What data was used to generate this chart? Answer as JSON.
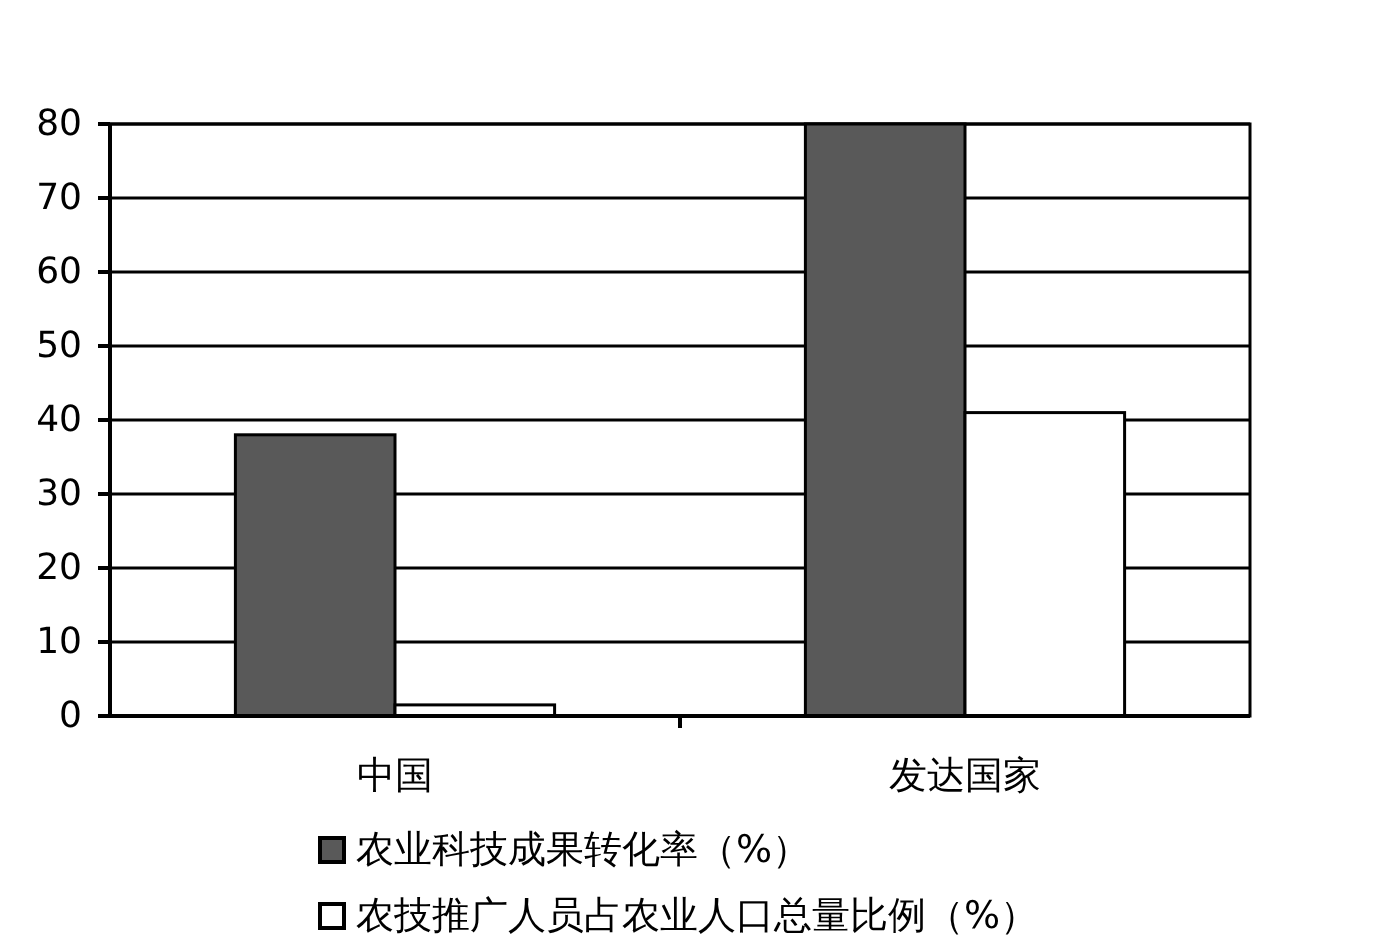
{
  "chart_data": {
    "type": "bar",
    "categories": [
      "中国",
      "发达国家"
    ],
    "series": [
      {
        "name": "农业科技成果转化率（%）",
        "color": "#595959",
        "values": [
          38,
          80
        ]
      },
      {
        "name": "农技推广人员占农业人口总量比例（%）",
        "color": "#ffffff",
        "values": [
          1.5,
          41
        ]
      }
    ],
    "ylim": [
      0,
      80
    ],
    "yticks": [
      0,
      10,
      20,
      30,
      40,
      50,
      60,
      70,
      80
    ],
    "grid": "y",
    "legend": "bottom"
  }
}
